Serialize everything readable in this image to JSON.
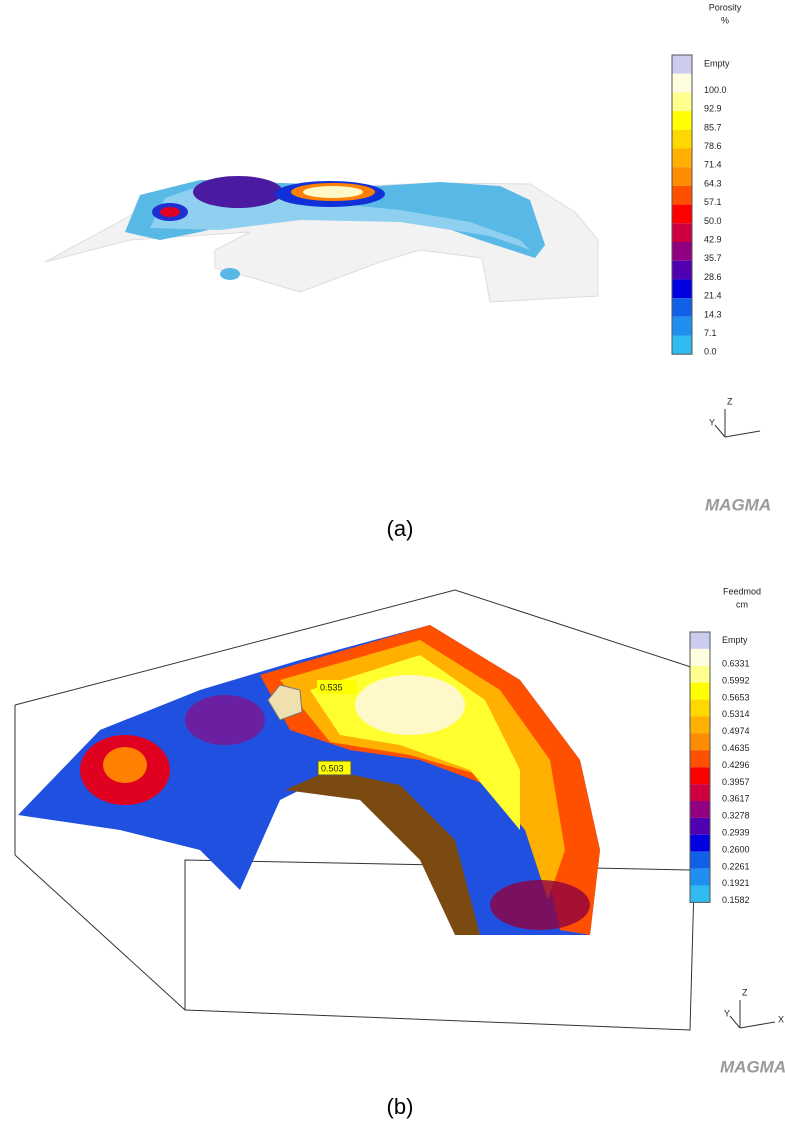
{
  "panels": [
    {
      "caption": "(a)",
      "legend": {
        "title": "Porosity",
        "unit": "%",
        "labels": [
          "Empty",
          "100.0",
          "92.9",
          "85.7",
          "78.6",
          "71.4",
          "64.3",
          "57.1",
          "50.0",
          "42.9",
          "35.7",
          "28.6",
          "21.4",
          "14.3",
          "7.1",
          "0.0"
        ]
      },
      "axes": [
        "Z",
        "Y"
      ],
      "logo": "MAGMA"
    },
    {
      "caption": "(b)",
      "legend": {
        "title": "Feedmod",
        "unit": "cm",
        "labels": [
          "Empty",
          "0.6331",
          "0.5992",
          "0.5653",
          "0.5314",
          "0.4974",
          "0.4635",
          "0.4296",
          "0.3957",
          "0.3617",
          "0.3278",
          "0.2939",
          "0.2600",
          "0.2261",
          "0.1921",
          "0.1582"
        ]
      },
      "annotations": [
        "0.535",
        "0.503"
      ],
      "axes": [
        "Z",
        "Y",
        "X"
      ],
      "logo": "MAGMA"
    }
  ]
}
